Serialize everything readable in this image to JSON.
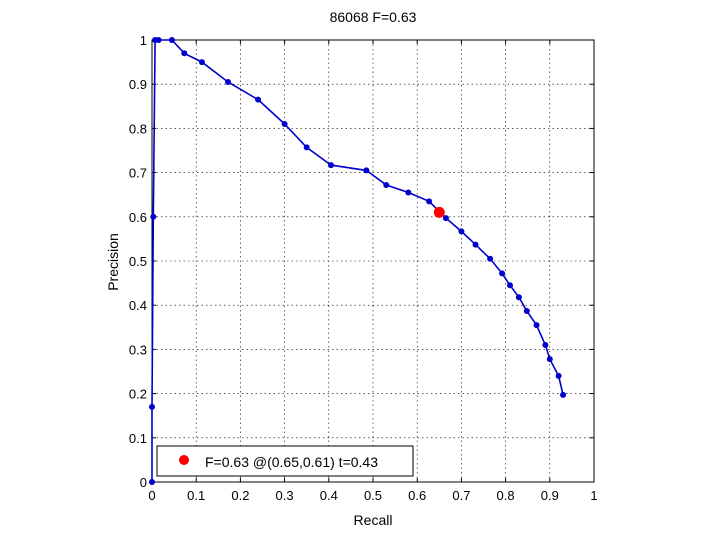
{
  "chart_data": {
    "type": "line",
    "title": "86068 F=0.63",
    "xlabel": "Recall",
    "ylabel": "Precision",
    "xlim": [
      0,
      1
    ],
    "ylim": [
      0,
      1
    ],
    "xticks": [
      0,
      0.1,
      0.2,
      0.3,
      0.4,
      0.5,
      0.6,
      0.7,
      0.8,
      0.9,
      1
    ],
    "yticks": [
      0,
      0.1,
      0.2,
      0.3,
      0.4,
      0.5,
      0.6,
      0.7,
      0.8,
      0.9,
      1
    ],
    "grid": true,
    "legend_position": "bottom-left",
    "line_color": "#0000cc",
    "highlight_color": "#ff0000",
    "series": [
      {
        "x": [
          0.0,
          0.0,
          0.003,
          0.007,
          0.015,
          0.045,
          0.073,
          0.113,
          0.172,
          0.24,
          0.3,
          0.35,
          0.405,
          0.485,
          0.53,
          0.58,
          0.627,
          0.665,
          0.7,
          0.732,
          0.765,
          0.792,
          0.81,
          0.83,
          0.848,
          0.87,
          0.89,
          0.9,
          0.92,
          0.93
        ],
        "y": [
          0.0,
          0.17,
          0.6,
          1.0,
          1.0,
          1.0,
          0.97,
          0.95,
          0.905,
          0.865,
          0.81,
          0.757,
          0.717,
          0.705,
          0.672,
          0.655,
          0.635,
          0.597,
          0.567,
          0.537,
          0.505,
          0.472,
          0.445,
          0.418,
          0.387,
          0.355,
          0.31,
          0.278,
          0.24,
          0.197
        ]
      }
    ],
    "highlight_point": {
      "x": 0.65,
      "y": 0.61
    },
    "legend": {
      "label": "F=0.63 @(0.65,0.61) t=0.43"
    }
  }
}
